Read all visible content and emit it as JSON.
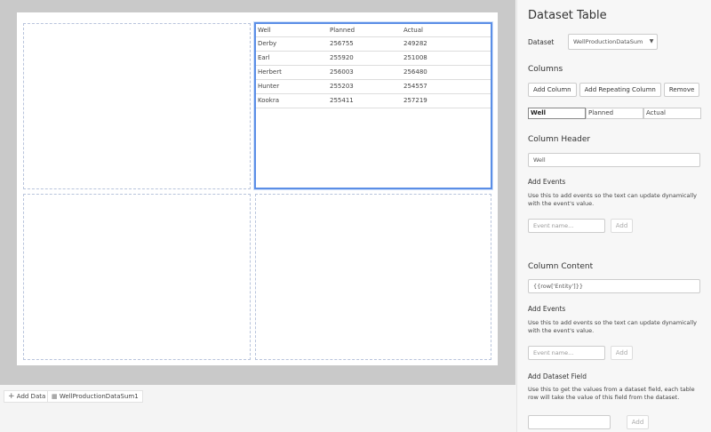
{
  "table": {
    "headers": [
      "Well",
      "Planned",
      "Actual"
    ],
    "rows": [
      [
        "Derby",
        "256755",
        "249282"
      ],
      [
        "Earl",
        "255920",
        "251008"
      ],
      [
        "Herbert",
        "256003",
        "256480"
      ],
      [
        "Hunter",
        "255203",
        "254557"
      ],
      [
        "Kookra",
        "255411",
        "257219"
      ]
    ]
  },
  "bottom": {
    "add_data": "Add Data",
    "dataset_chip": "WellProductionDataSum1"
  },
  "panel": {
    "title": "Dataset Table",
    "dataset_label": "Dataset",
    "dataset_value": "WellProductionDataSum",
    "columns_title": "Columns",
    "add_column": "Add Column",
    "add_repeating_column": "Add Repeating Column",
    "remove": "Remove",
    "column_tabs": [
      "Well",
      "Planned",
      "Actual"
    ],
    "column_header_title": "Column Header",
    "column_header_value": "Well",
    "add_events_title": "Add Events",
    "add_events_desc": "Use this to add events so the text can update dynamically with the event's value.",
    "event_placeholder": "Event name...",
    "add": "Add",
    "column_content_title": "Column Content",
    "column_content_value": "{{row['Entity']}}",
    "add_events_title2": "Add Events",
    "add_events_desc2": "Use this to add events so the text can update dynamically with the event's value.",
    "event_placeholder2": "Event name...",
    "add2": "Add",
    "dataset_field_title": "Add Dataset Field",
    "dataset_field_desc": "Use this to get the values from a dataset field, each table row will take the value of this field from the dataset.",
    "add3": "Add"
  },
  "colors": {
    "selection": "#5b8ee6",
    "stage": "#c9c9c9"
  }
}
